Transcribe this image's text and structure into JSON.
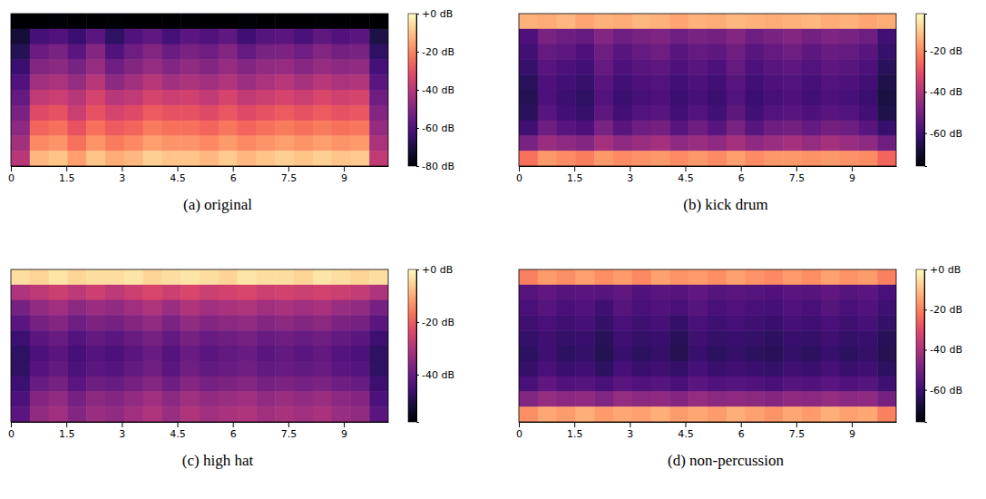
{
  "chart_data": [
    {
      "type": "heatmap",
      "title": "(a) original",
      "x": [
        0.255,
        0.765,
        1.275,
        1.785,
        2.295,
        2.805,
        3.315,
        3.825,
        4.335,
        4.845,
        5.355,
        5.865,
        6.375,
        6.885,
        7.395,
        7.905,
        8.415,
        8.925,
        9.435,
        9.945
      ],
      "xlim": [
        0,
        10.2
      ],
      "xticks": [
        0,
        1.5,
        3,
        4.5,
        6,
        7.5,
        9
      ],
      "tick_labels": "x",
      "cells": [
        [
          -80,
          -80,
          -79,
          -80,
          -80,
          -79,
          -80,
          -80,
          -80,
          -79,
          -80,
          -80,
          -79,
          -80,
          -80,
          -80,
          -79,
          -80,
          -80,
          -80
        ],
        [
          -72,
          -62,
          -60,
          -64,
          -58,
          -66,
          -60,
          -57,
          -62,
          -58,
          -60,
          -57,
          -63,
          -59,
          -58,
          -61,
          -57,
          -60,
          -58,
          -70
        ],
        [
          -68,
          -55,
          -52,
          -58,
          -50,
          -60,
          -54,
          -50,
          -55,
          -52,
          -54,
          -50,
          -56,
          -52,
          -51,
          -54,
          -50,
          -53,
          -52,
          -66
        ],
        [
          -64,
          -50,
          -48,
          -52,
          -46,
          -54,
          -50,
          -46,
          -50,
          -47,
          -50,
          -46,
          -50,
          -47,
          -46,
          -49,
          -46,
          -48,
          -47,
          -62
        ],
        [
          -60,
          -44,
          -42,
          -46,
          -40,
          -48,
          -44,
          -40,
          -44,
          -42,
          -44,
          -41,
          -45,
          -42,
          -40,
          -43,
          -40,
          -42,
          -41,
          -58
        ],
        [
          -56,
          -38,
          -36,
          -40,
          -34,
          -40,
          -38,
          -34,
          -36,
          -35,
          -38,
          -34,
          -38,
          -36,
          -34,
          -36,
          -33,
          -35,
          -34,
          -54
        ],
        [
          -52,
          -32,
          -30,
          -36,
          -30,
          -34,
          -32,
          -28,
          -30,
          -30,
          -32,
          -29,
          -32,
          -30,
          -28,
          -30,
          -28,
          -30,
          -29,
          -50
        ],
        [
          -48,
          -26,
          -24,
          -30,
          -24,
          -28,
          -26,
          -22,
          -24,
          -24,
          -26,
          -23,
          -26,
          -24,
          -22,
          -24,
          -22,
          -24,
          -23,
          -46
        ],
        [
          -44,
          -20,
          -18,
          -24,
          -18,
          -22,
          -20,
          -16,
          -18,
          -18,
          -20,
          -17,
          -20,
          -18,
          -16,
          -18,
          -16,
          -18,
          -17,
          -42
        ],
        [
          -40,
          -12,
          -10,
          -16,
          -10,
          -14,
          -12,
          -8,
          -10,
          -10,
          -12,
          -9,
          -12,
          -10,
          -8,
          -10,
          -8,
          -10,
          -9,
          -38
        ]
      ],
      "colorbar": {
        "range": [
          -80,
          0
        ],
        "ticks": [
          {
            "value": 0,
            "label": "+0 dB"
          },
          {
            "value": -20,
            "label": "-20 dB"
          },
          {
            "value": -40,
            "label": "-40 dB"
          },
          {
            "value": -60,
            "label": "-60 dB"
          },
          {
            "value": -80,
            "label": "-80 dB"
          }
        ]
      }
    },
    {
      "type": "heatmap",
      "title": "(b) kick drum",
      "x": [
        0.255,
        0.765,
        1.275,
        1.785,
        2.295,
        2.805,
        3.315,
        3.825,
        4.335,
        4.845,
        5.355,
        5.865,
        6.375,
        6.885,
        7.395,
        7.905,
        8.415,
        8.925,
        9.435,
        9.945
      ],
      "xlim": [
        0,
        10.2
      ],
      "xticks": [
        0,
        1.5,
        3,
        4.5,
        6,
        7.5,
        9
      ],
      "tick_labels": "x",
      "cells": [
        [
          -14,
          -15,
          -13,
          -16,
          -14,
          -15,
          -13,
          -14,
          -16,
          -14,
          -15,
          -13,
          -14,
          -15,
          -14,
          -13,
          -15,
          -14,
          -16,
          -15
        ],
        [
          -58,
          -50,
          -52,
          -54,
          -48,
          -52,
          -50,
          -49,
          -52,
          -50,
          -51,
          -48,
          -52,
          -50,
          -48,
          -51,
          -49,
          -50,
          -52,
          -60
        ],
        [
          -60,
          -54,
          -55,
          -58,
          -52,
          -56,
          -54,
          -52,
          -56,
          -54,
          -55,
          -52,
          -56,
          -54,
          -52,
          -55,
          -53,
          -54,
          -56,
          -62
        ],
        [
          -62,
          -56,
          -58,
          -60,
          -54,
          -58,
          -56,
          -55,
          -58,
          -56,
          -58,
          -54,
          -58,
          -56,
          -55,
          -57,
          -55,
          -56,
          -58,
          -64
        ],
        [
          -64,
          -58,
          -60,
          -62,
          -56,
          -60,
          -58,
          -57,
          -60,
          -58,
          -60,
          -56,
          -60,
          -58,
          -57,
          -59,
          -57,
          -58,
          -60,
          -66
        ],
        [
          -65,
          -58,
          -61,
          -63,
          -57,
          -61,
          -59,
          -58,
          -61,
          -59,
          -61,
          -57,
          -61,
          -59,
          -58,
          -60,
          -58,
          -59,
          -61,
          -67
        ],
        [
          -64,
          -56,
          -60,
          -62,
          -55,
          -60,
          -57,
          -56,
          -60,
          -57,
          -60,
          -55,
          -60,
          -57,
          -56,
          -58,
          -56,
          -57,
          -60,
          -66
        ],
        [
          -60,
          -52,
          -56,
          -58,
          -50,
          -56,
          -52,
          -51,
          -56,
          -52,
          -56,
          -50,
          -56,
          -52,
          -51,
          -54,
          -51,
          -52,
          -56,
          -62
        ],
        [
          -50,
          -44,
          -46,
          -48,
          -42,
          -46,
          -44,
          -42,
          -46,
          -44,
          -46,
          -42,
          -46,
          -44,
          -42,
          -45,
          -42,
          -44,
          -46,
          -52
        ],
        [
          -24,
          -18,
          -20,
          -22,
          -18,
          -20,
          -19,
          -18,
          -20,
          -18,
          -20,
          -17,
          -20,
          -18,
          -18,
          -19,
          -18,
          -19,
          -20,
          -26
        ]
      ],
      "colorbar": {
        "range": [
          -76,
          -2
        ],
        "ticks": [
          {
            "value": -20,
            "label": "-20 dB"
          },
          {
            "value": -40,
            "label": "-40 dB"
          },
          {
            "value": -60,
            "label": "-60 dB"
          }
        ]
      }
    },
    {
      "type": "heatmap",
      "title": "(c) high hat",
      "x": [
        0.255,
        0.765,
        1.275,
        1.785,
        2.295,
        2.805,
        3.315,
        3.825,
        4.335,
        4.845,
        5.355,
        5.865,
        6.375,
        6.885,
        7.395,
        7.905,
        8.415,
        8.925,
        9.435,
        9.945
      ],
      "xlim": [
        0,
        10.2
      ],
      "xticks": [
        0,
        1.5,
        3,
        4.5,
        6,
        7.5,
        9
      ],
      "tick_labels": "x",
      "cells": [
        [
          -4,
          -5,
          -3,
          -5,
          -4,
          -4,
          -3,
          -5,
          -4,
          -3,
          -4,
          -5,
          -3,
          -4,
          -4,
          -5,
          -3,
          -4,
          -5,
          -4
        ],
        [
          -30,
          -28,
          -26,
          -28,
          -26,
          -28,
          -26,
          -24,
          -26,
          -24,
          -26,
          -25,
          -24,
          -26,
          -25,
          -26,
          -25,
          -26,
          -27,
          -30
        ],
        [
          -38,
          -34,
          -32,
          -35,
          -33,
          -34,
          -32,
          -30,
          -33,
          -30,
          -32,
          -31,
          -30,
          -32,
          -31,
          -32,
          -31,
          -33,
          -34,
          -38
        ],
        [
          -42,
          -38,
          -36,
          -39,
          -37,
          -38,
          -36,
          -34,
          -37,
          -34,
          -36,
          -35,
          -34,
          -36,
          -35,
          -36,
          -35,
          -37,
          -38,
          -42
        ],
        [
          -46,
          -42,
          -40,
          -43,
          -41,
          -42,
          -40,
          -38,
          -41,
          -38,
          -40,
          -39,
          -38,
          -40,
          -39,
          -40,
          -39,
          -41,
          -42,
          -46
        ],
        [
          -48,
          -44,
          -42,
          -45,
          -43,
          -44,
          -42,
          -40,
          -43,
          -40,
          -42,
          -41,
          -40,
          -42,
          -41,
          -42,
          -41,
          -43,
          -44,
          -48
        ],
        [
          -48,
          -43,
          -41,
          -44,
          -42,
          -43,
          -41,
          -39,
          -42,
          -39,
          -41,
          -40,
          -39,
          -41,
          -40,
          -41,
          -40,
          -42,
          -43,
          -48
        ],
        [
          -46,
          -40,
          -38,
          -42,
          -39,
          -40,
          -38,
          -36,
          -39,
          -36,
          -38,
          -37,
          -36,
          -38,
          -37,
          -38,
          -37,
          -39,
          -40,
          -46
        ],
        [
          -44,
          -36,
          -34,
          -38,
          -35,
          -36,
          -34,
          -32,
          -35,
          -32,
          -34,
          -33,
          -32,
          -34,
          -33,
          -34,
          -33,
          -35,
          -36,
          -44
        ],
        [
          -42,
          -34,
          -32,
          -36,
          -33,
          -34,
          -32,
          -30,
          -33,
          -30,
          -32,
          -31,
          -30,
          -32,
          -31,
          -32,
          -31,
          -33,
          -34,
          -42
        ]
      ],
      "colorbar": {
        "range": [
          -58,
          0
        ],
        "ticks": [
          {
            "value": 0,
            "label": "+0 dB"
          },
          {
            "value": -20,
            "label": "-20 dB"
          },
          {
            "value": -40,
            "label": "-40 dB"
          }
        ]
      }
    },
    {
      "type": "heatmap",
      "title": "(d) non-percussion",
      "x": [
        0.255,
        0.765,
        1.275,
        1.785,
        2.295,
        2.805,
        3.315,
        3.825,
        4.335,
        4.845,
        5.355,
        5.865,
        6.375,
        6.885,
        7.395,
        7.905,
        8.415,
        8.925,
        9.435,
        9.945
      ],
      "xlim": [
        0,
        10.2
      ],
      "xticks": [
        0,
        1.5,
        3,
        4.5,
        6,
        7.5,
        9
      ],
      "tick_labels": "x",
      "cells": [
        [
          -20,
          -16,
          -18,
          -15,
          -18,
          -16,
          -19,
          -15,
          -17,
          -16,
          -18,
          -15,
          -17,
          -19,
          -16,
          -18,
          -15,
          -17,
          -16,
          -20
        ],
        [
          -56,
          -54,
          -56,
          -55,
          -56,
          -54,
          -57,
          -55,
          -56,
          -54,
          -56,
          -55,
          -56,
          -57,
          -55,
          -56,
          -54,
          -56,
          -55,
          -58
        ],
        [
          -58,
          -56,
          -58,
          -57,
          -60,
          -56,
          -58,
          -57,
          -58,
          -56,
          -58,
          -57,
          -58,
          -59,
          -57,
          -58,
          -56,
          -58,
          -57,
          -60
        ],
        [
          -60,
          -58,
          -60,
          -59,
          -62,
          -58,
          -60,
          -59,
          -62,
          -58,
          -60,
          -59,
          -60,
          -61,
          -59,
          -60,
          -58,
          -60,
          -59,
          -62
        ],
        [
          -62,
          -60,
          -62,
          -61,
          -64,
          -60,
          -62,
          -61,
          -64,
          -60,
          -62,
          -61,
          -62,
          -63,
          -61,
          -62,
          -60,
          -62,
          -61,
          -64
        ],
        [
          -63,
          -60,
          -63,
          -62,
          -65,
          -61,
          -63,
          -62,
          -65,
          -61,
          -63,
          -62,
          -63,
          -64,
          -62,
          -63,
          -61,
          -63,
          -62,
          -65
        ],
        [
          -62,
          -58,
          -61,
          -60,
          -63,
          -59,
          -61,
          -60,
          -62,
          -59,
          -61,
          -60,
          -61,
          -62,
          -60,
          -61,
          -59,
          -61,
          -60,
          -63
        ],
        [
          -58,
          -54,
          -57,
          -56,
          -58,
          -55,
          -57,
          -56,
          -58,
          -55,
          -57,
          -56,
          -57,
          -58,
          -56,
          -57,
          -55,
          -57,
          -56,
          -60
        ],
        [
          -48,
          -44,
          -46,
          -45,
          -48,
          -44,
          -46,
          -45,
          -47,
          -44,
          -46,
          -45,
          -46,
          -47,
          -45,
          -46,
          -44,
          -46,
          -45,
          -50
        ],
        [
          -18,
          -14,
          -16,
          -13,
          -16,
          -14,
          -15,
          -13,
          -16,
          -14,
          -16,
          -13,
          -15,
          -17,
          -14,
          -16,
          -13,
          -15,
          -14,
          -20
        ]
      ],
      "colorbar": {
        "range": [
          -76,
          0
        ],
        "ticks": [
          {
            "value": 0,
            "label": "+0 dB"
          },
          {
            "value": -20,
            "label": "-20 dB"
          },
          {
            "value": -40,
            "label": "-40 dB"
          },
          {
            "value": -60,
            "label": "-60 dB"
          }
        ]
      }
    }
  ]
}
